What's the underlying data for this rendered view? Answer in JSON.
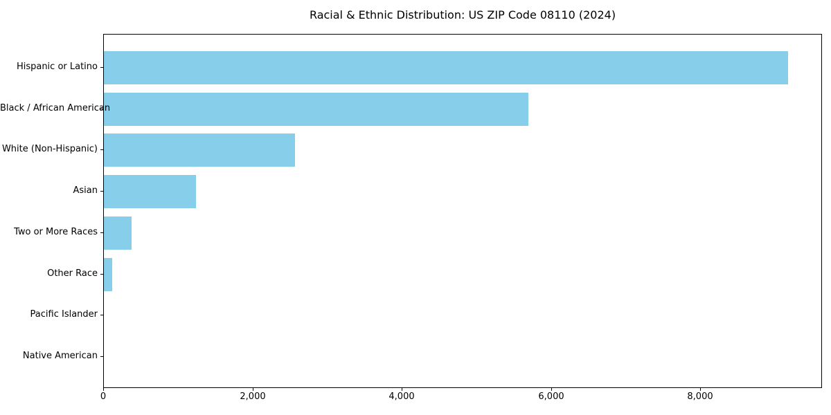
{
  "chart_data": {
    "type": "bar",
    "orientation": "horizontal",
    "title": "Racial & Ethnic Distribution: US ZIP Code 08110 (2024)",
    "categories": [
      "Hispanic or Latino",
      "Black / African American",
      "White (Non-Hispanic)",
      "Asian",
      "Two or More Races",
      "Other Race",
      "Pacific Islander",
      "Native American"
    ],
    "values": [
      9165,
      5690,
      2560,
      1230,
      375,
      110,
      0,
      0
    ],
    "bar_color": "#87CEEB",
    "xlabel": "",
    "ylabel": "",
    "xlim": [
      0,
      9633
    ],
    "x_ticks": [
      0,
      2000,
      4000,
      6000,
      8000
    ],
    "x_tick_labels": [
      "0",
      "2,000",
      "4,000",
      "6,000",
      "8,000"
    ],
    "grid": false,
    "legend_position": "none",
    "text_color": "#000000",
    "spine_color": "#000000",
    "background_color": "#ffffff"
  }
}
